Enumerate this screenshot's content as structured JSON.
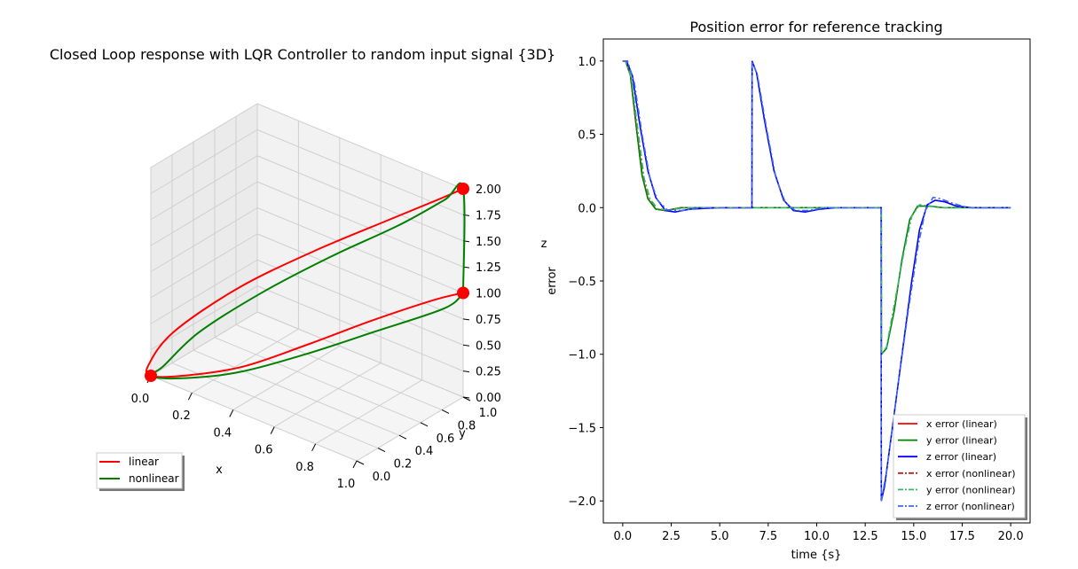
{
  "chart_data": [
    {
      "type": "line",
      "projection": "3d",
      "title": "Closed Loop response with LQR Controller to random input signal {3D}",
      "xlabel": "x",
      "ylabel": "y",
      "zlabel": "z",
      "xlim": [
        0,
        1
      ],
      "ylim": [
        0,
        1
      ],
      "zlim": [
        0,
        2
      ],
      "xticks": [
        "0.0",
        "0.2",
        "0.4",
        "0.6",
        "0.8",
        "1.0"
      ],
      "yticks": [
        "0.0",
        "0.2",
        "0.4",
        "0.6",
        "0.8",
        "1.0"
      ],
      "zticks": [
        "0.00",
        "0.25",
        "0.50",
        "0.75",
        "1.00",
        "1.25",
        "1.50",
        "1.75",
        "2.00"
      ],
      "grid": true,
      "legend_position": "lower-left",
      "series": [
        {
          "name": "linear",
          "color": "#ff0000",
          "points": [
            [
              1.0,
              1.0,
              1.0
            ],
            [
              0.9,
              0.92,
              0.9
            ],
            [
              0.7,
              0.72,
              0.66
            ],
            [
              0.5,
              0.5,
              0.4
            ],
            [
              0.3,
              0.28,
              0.16
            ],
            [
              0.1,
              0.1,
              0.02
            ],
            [
              0.0,
              0.0,
              0.0
            ],
            [
              -0.01,
              0.0,
              0.1
            ],
            [
              0.08,
              0.06,
              0.45
            ],
            [
              0.28,
              0.28,
              0.9
            ],
            [
              0.52,
              0.52,
              1.3
            ],
            [
              0.76,
              0.76,
              1.65
            ],
            [
              0.92,
              0.92,
              1.88
            ],
            [
              1.0,
              1.0,
              2.0
            ]
          ]
        },
        {
          "name": "nonlinear",
          "color": "#008000",
          "points": [
            [
              1.0,
              1.0,
              1.0
            ],
            [
              0.96,
              0.9,
              0.88
            ],
            [
              0.74,
              0.66,
              0.62
            ],
            [
              0.52,
              0.44,
              0.36
            ],
            [
              0.3,
              0.22,
              0.14
            ],
            [
              0.1,
              0.06,
              0.02
            ],
            [
              0.0,
              0.0,
              0.0
            ],
            [
              0.05,
              0.02,
              0.12
            ],
            [
              0.16,
              0.14,
              0.46
            ],
            [
              0.36,
              0.34,
              0.88
            ],
            [
              0.58,
              0.56,
              1.27
            ],
            [
              0.8,
              0.78,
              1.62
            ],
            [
              0.94,
              0.94,
              1.88
            ],
            [
              1.0,
              1.0,
              2.0
            ],
            [
              1.0,
              1.0,
              1.0
            ]
          ]
        }
      ],
      "markers": {
        "color": "#ff0000",
        "points": [
          [
            0,
            0,
            0
          ],
          [
            1,
            1,
            1
          ],
          [
            1,
            1,
            2
          ]
        ]
      }
    },
    {
      "type": "line",
      "title": "Position error for reference tracking",
      "xlabel": "time {s}",
      "ylabel": "error",
      "xlim": [
        -1,
        21
      ],
      "ylim": [
        -2.15,
        1.15
      ],
      "xticks": [
        "0.0",
        "2.5",
        "5.0",
        "7.5",
        "10.0",
        "12.5",
        "15.0",
        "17.5",
        "20.0"
      ],
      "yticks": [
        "1.0",
        "0.5",
        "0.0",
        "−0.5",
        "−1.0",
        "−1.5",
        "−2.0"
      ],
      "legend_position": "lower-right",
      "series": [
        {
          "name": "x error (linear)",
          "color": "#ff0000",
          "style": "solid",
          "points": [
            [
              0,
              1
            ],
            [
              0.15,
              1
            ],
            [
              0.4,
              0.9
            ],
            [
              0.7,
              0.55
            ],
            [
              1.0,
              0.22
            ],
            [
              1.3,
              0.06
            ],
            [
              1.7,
              -0.01
            ],
            [
              2.2,
              -0.02
            ],
            [
              3,
              0
            ],
            [
              6.7,
              0
            ]
          ]
        },
        {
          "name": "y error (linear)",
          "color": "#008000",
          "style": "solid",
          "points": [
            [
              0,
              1
            ],
            [
              0.15,
              1
            ],
            [
              0.4,
              0.9
            ],
            [
              0.7,
              0.55
            ],
            [
              1.0,
              0.22
            ],
            [
              1.3,
              0.06
            ],
            [
              1.7,
              -0.01
            ],
            [
              2.2,
              -0.02
            ],
            [
              3,
              0
            ],
            [
              13.33,
              0
            ],
            [
              13.34,
              -1.0
            ],
            [
              13.6,
              -0.96
            ],
            [
              14,
              -0.7
            ],
            [
              14.4,
              -0.35
            ],
            [
              14.8,
              -0.08
            ],
            [
              15.2,
              0.01
            ],
            [
              15.8,
              0.01
            ],
            [
              16.5,
              0
            ],
            [
              20,
              0
            ]
          ]
        },
        {
          "name": "z error (linear)",
          "color": "#0000ff",
          "style": "solid",
          "points": [
            [
              0,
              1
            ],
            [
              0.2,
              1
            ],
            [
              0.5,
              0.9
            ],
            [
              0.9,
              0.55
            ],
            [
              1.3,
              0.25
            ],
            [
              1.7,
              0.07
            ],
            [
              2.2,
              -0.02
            ],
            [
              2.7,
              -0.03
            ],
            [
              3.5,
              -0.01
            ],
            [
              5,
              0
            ],
            [
              6.66,
              0
            ],
            [
              6.67,
              1
            ],
            [
              6.9,
              0.92
            ],
            [
              7.3,
              0.6
            ],
            [
              7.8,
              0.25
            ],
            [
              8.3,
              0.05
            ],
            [
              8.8,
              -0.02
            ],
            [
              9.4,
              -0.03
            ],
            [
              10.2,
              -0.01
            ],
            [
              11,
              0
            ],
            [
              13.32,
              0
            ],
            [
              13.33,
              -2.0
            ],
            [
              13.5,
              -1.9
            ],
            [
              13.9,
              -1.5
            ],
            [
              14.4,
              -1.0
            ],
            [
              14.9,
              -0.5
            ],
            [
              15.3,
              -0.15
            ],
            [
              15.7,
              0.02
            ],
            [
              16.1,
              0.05
            ],
            [
              16.6,
              0.04
            ],
            [
              17.2,
              0.01
            ],
            [
              18,
              0
            ],
            [
              20,
              0
            ]
          ]
        },
        {
          "name": "x error (nonlinear)",
          "color": "#b22222",
          "style": "dashdot",
          "points": [
            [
              0,
              1
            ],
            [
              0.15,
              1
            ],
            [
              0.45,
              0.88
            ],
            [
              0.8,
              0.5
            ],
            [
              1.1,
              0.2
            ],
            [
              1.4,
              0.06
            ],
            [
              1.8,
              -0.01
            ],
            [
              2.4,
              -0.015
            ],
            [
              3.2,
              0
            ],
            [
              6.7,
              0
            ]
          ]
        },
        {
          "name": "y error (nonlinear)",
          "color": "#3cb371",
          "style": "dashdot",
          "points": [
            [
              0,
              1
            ],
            [
              0.15,
              1
            ],
            [
              0.45,
              0.88
            ],
            [
              0.8,
              0.5
            ],
            [
              1.1,
              0.2
            ],
            [
              1.4,
              0.06
            ],
            [
              1.8,
              -0.01
            ],
            [
              2.4,
              -0.015
            ],
            [
              3.2,
              0
            ],
            [
              13.33,
              0
            ],
            [
              13.34,
              -1.0
            ],
            [
              13.6,
              -0.95
            ],
            [
              14.0,
              -0.66
            ],
            [
              14.5,
              -0.3
            ],
            [
              14.9,
              -0.06
            ],
            [
              15.3,
              0.02
            ],
            [
              15.9,
              0.01
            ],
            [
              16.6,
              0
            ],
            [
              20,
              0
            ]
          ]
        },
        {
          "name": "z error (nonlinear)",
          "color": "#4169e1",
          "style": "dashdot",
          "points": [
            [
              0,
              1
            ],
            [
              0.25,
              1
            ],
            [
              0.6,
              0.85
            ],
            [
              1.0,
              0.5
            ],
            [
              1.4,
              0.2
            ],
            [
              1.8,
              0.05
            ],
            [
              2.3,
              -0.015
            ],
            [
              3.0,
              -0.02
            ],
            [
              4,
              0
            ],
            [
              6.66,
              0
            ],
            [
              6.67,
              1
            ],
            [
              6.95,
              0.9
            ],
            [
              7.4,
              0.55
            ],
            [
              7.9,
              0.2
            ],
            [
              8.4,
              0.03
            ],
            [
              8.9,
              -0.02
            ],
            [
              9.5,
              -0.02
            ],
            [
              10.5,
              0
            ],
            [
              13.32,
              0
            ],
            [
              13.33,
              -2.0
            ],
            [
              13.6,
              -1.8
            ],
            [
              14.1,
              -1.3
            ],
            [
              14.7,
              -0.72
            ],
            [
              15.2,
              -0.28
            ],
            [
              15.6,
              -0.02
            ],
            [
              16.0,
              0.07
            ],
            [
              16.4,
              0.06
            ],
            [
              17,
              0.03
            ],
            [
              17.8,
              0
            ],
            [
              20,
              0
            ]
          ]
        }
      ]
    }
  ]
}
